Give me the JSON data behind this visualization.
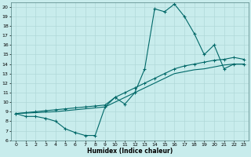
{
  "xlabel": "Humidex (Indice chaleur)",
  "bg_color": "#c8ecec",
  "grid_color": "#b0d8d8",
  "line_color": "#006868",
  "xlim": [
    -0.5,
    23.5
  ],
  "ylim": [
    6,
    20.5
  ],
  "xticks": [
    0,
    1,
    2,
    3,
    4,
    5,
    6,
    7,
    8,
    9,
    10,
    11,
    12,
    13,
    14,
    15,
    16,
    17,
    18,
    19,
    20,
    21,
    22,
    23
  ],
  "yticks": [
    6,
    7,
    8,
    9,
    10,
    11,
    12,
    13,
    14,
    15,
    16,
    17,
    18,
    19,
    20
  ],
  "line1_x": [
    0,
    1,
    2,
    3,
    4,
    5,
    6,
    7,
    8,
    9,
    10,
    11,
    12,
    13,
    14,
    15,
    16,
    17,
    18,
    19,
    20,
    21,
    22,
    23
  ],
  "line1_y": [
    8.8,
    8.5,
    8.5,
    8.3,
    8.0,
    7.2,
    6.8,
    6.5,
    6.5,
    9.5,
    10.5,
    9.8,
    11.0,
    13.5,
    19.8,
    19.5,
    20.3,
    19.0,
    17.2,
    15.0,
    16.0,
    13.5,
    14.0,
    14.0
  ],
  "line2_x": [
    0,
    1,
    2,
    3,
    4,
    5,
    6,
    7,
    8,
    9,
    10,
    11,
    12,
    13,
    14,
    15,
    16,
    17,
    18,
    19,
    20,
    21,
    22,
    23
  ],
  "line2_y": [
    8.8,
    8.9,
    9.0,
    9.1,
    9.2,
    9.3,
    9.4,
    9.5,
    9.6,
    9.7,
    10.5,
    11.0,
    11.5,
    12.0,
    12.5,
    13.0,
    13.5,
    13.8,
    14.0,
    14.2,
    14.4,
    14.5,
    14.7,
    14.5
  ],
  "line3_x": [
    0,
    1,
    2,
    3,
    4,
    5,
    6,
    7,
    8,
    9,
    10,
    11,
    12,
    13,
    14,
    15,
    16,
    17,
    18,
    19,
    20,
    21,
    22,
    23
  ],
  "line3_y": [
    8.8,
    8.85,
    8.9,
    8.95,
    9.0,
    9.1,
    9.2,
    9.3,
    9.4,
    9.5,
    10.0,
    10.5,
    11.0,
    11.5,
    12.0,
    12.5,
    13.0,
    13.2,
    13.4,
    13.5,
    13.7,
    13.9,
    14.0,
    14.0
  ]
}
